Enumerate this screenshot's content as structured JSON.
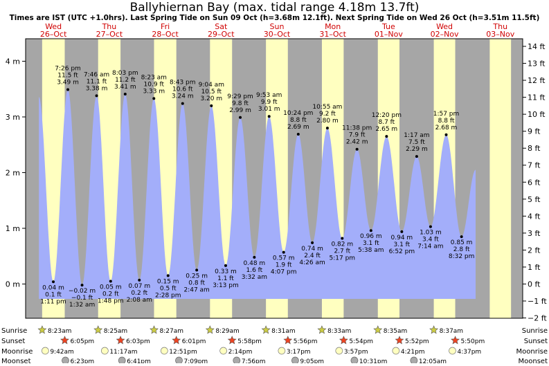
{
  "title": "Ballyhiernan Bay (max. tidal range 4.18m 13.7ft)",
  "subtitle": "Times are IST (UTC +1.0hrs). Last Spring Tide on Sun 09 Oct (h=3.68m 12.1ft). Next Spring Tide on Wed 26 Oct (h=3.51m 11.5ft)",
  "colors": {
    "night": "#a6a6a6",
    "day": "#ffffc0",
    "tide": "#a3aefa",
    "day_label": "#d00000",
    "sunrise_star": "#cccc44",
    "sunset_star": "#ee4422",
    "moonrise": "#ffffc0",
    "moonset": "#aaaaaa"
  },
  "chart_data": {
    "type": "area",
    "ylim_m": [
      -0.6,
      4.3
    ],
    "y_ticks_m": [
      "4 m",
      "3 m",
      "2 m",
      "1 m",
      "0 m"
    ],
    "y_ticks_ft": [
      "14 ft",
      "13 ft",
      "12 ft",
      "11 ft",
      "10 ft",
      "9 ft",
      "8 ft",
      "7 ft",
      "6 ft",
      "5 ft",
      "4 ft",
      "3 ft",
      "2 ft",
      "1 ft",
      "0 ft",
      "−1 ft",
      "−2 ft"
    ],
    "days": [
      {
        "dow": "Wed",
        "date": "26–Oct"
      },
      {
        "dow": "Thu",
        "date": "27–Oct"
      },
      {
        "dow": "Fri",
        "date": "28–Oct"
      },
      {
        "dow": "Sat",
        "date": "29–Oct"
      },
      {
        "dow": "Sun",
        "date": "30–Oct"
      },
      {
        "dow": "Mon",
        "date": "31–Oct"
      },
      {
        "dow": "Tue",
        "date": "01–Nov"
      },
      {
        "dow": "Wed",
        "date": "02–Nov"
      },
      {
        "dow": "Thu",
        "date": "03–Nov"
      }
    ],
    "tides": [
      {
        "kind": "high",
        "day": 0,
        "hour": 7.0,
        "m": 3.36,
        "unlabeled": true
      },
      {
        "kind": "low",
        "day": 0,
        "hour": 13.18,
        "m": 0.04,
        "h": "0.04 m",
        "ft": "0.1 ft",
        "time": "1:11 pm"
      },
      {
        "kind": "high",
        "day": 0,
        "hour": 19.43,
        "m": 3.49,
        "h": "3.49 m",
        "ft": "11.5 ft",
        "time": "7:26 pm"
      },
      {
        "kind": "low",
        "day": 1,
        "hour": 1.53,
        "m": -0.02,
        "h": "−0.02 m",
        "ft": "−0.1 ft",
        "time": "1:32 am"
      },
      {
        "kind": "high",
        "day": 1,
        "hour": 7.77,
        "m": 3.38,
        "h": "3.38 m",
        "ft": "11.1 ft",
        "time": "7:46 am"
      },
      {
        "kind": "low",
        "day": 1,
        "hour": 13.8,
        "m": 0.05,
        "h": "0.05 m",
        "ft": "0.2 ft",
        "time": "1:48 pm"
      },
      {
        "kind": "high",
        "day": 1,
        "hour": 20.05,
        "m": 3.41,
        "h": "3.41 m",
        "ft": "11.2 ft",
        "time": "8:03 pm"
      },
      {
        "kind": "low",
        "day": 2,
        "hour": 2.13,
        "m": 0.07,
        "h": "0.07 m",
        "ft": "0.2 ft",
        "time": "2:08 am"
      },
      {
        "kind": "high",
        "day": 2,
        "hour": 8.38,
        "m": 3.33,
        "h": "3.33 m",
        "ft": "10.9 ft",
        "time": "8:23 am"
      },
      {
        "kind": "low",
        "day": 2,
        "hour": 14.47,
        "m": 0.15,
        "h": "0.15 m",
        "ft": "0.5 ft",
        "time": "2:28 pm"
      },
      {
        "kind": "high",
        "day": 2,
        "hour": 20.72,
        "m": 3.24,
        "h": "3.24 m",
        "ft": "10.6 ft",
        "time": "8:43 pm"
      },
      {
        "kind": "low",
        "day": 3,
        "hour": 2.78,
        "m": 0.25,
        "h": "0.25 m",
        "ft": "0.8 ft",
        "time": "2:47 am"
      },
      {
        "kind": "high",
        "day": 3,
        "hour": 9.07,
        "m": 3.2,
        "h": "3.20 m",
        "ft": "10.5 ft",
        "time": "9:04 am"
      },
      {
        "kind": "low",
        "day": 3,
        "hour": 15.22,
        "m": 0.33,
        "h": "0.33 m",
        "ft": "1.1 ft",
        "time": "3:13 pm"
      },
      {
        "kind": "high",
        "day": 3,
        "hour": 21.48,
        "m": 2.99,
        "h": "2.99 m",
        "ft": "9.8 ft",
        "time": "9:29 pm"
      },
      {
        "kind": "low",
        "day": 4,
        "hour": 3.53,
        "m": 0.48,
        "h": "0.48 m",
        "ft": "1.6 ft",
        "time": "3:32 am"
      },
      {
        "kind": "high",
        "day": 4,
        "hour": 9.88,
        "m": 3.01,
        "h": "3.01 m",
        "ft": "9.9 ft",
        "time": "9:53 am"
      },
      {
        "kind": "low",
        "day": 4,
        "hour": 16.12,
        "m": 0.57,
        "h": "0.57 m",
        "ft": "1.9 ft",
        "time": "4:07 pm"
      },
      {
        "kind": "high",
        "day": 4,
        "hour": 22.4,
        "m": 2.69,
        "h": "2.69 m",
        "ft": "8.8 ft",
        "time": "10:24 pm"
      },
      {
        "kind": "low",
        "day": 5,
        "hour": 4.43,
        "m": 0.74,
        "h": "0.74 m",
        "ft": "2.4 ft",
        "time": "4:26 am"
      },
      {
        "kind": "high",
        "day": 5,
        "hour": 10.92,
        "m": 2.8,
        "h": "2.80 m",
        "ft": "9.2 ft",
        "time": "10:55 am"
      },
      {
        "kind": "low",
        "day": 5,
        "hour": 17.28,
        "m": 0.82,
        "h": "0.82 m",
        "ft": "2.7 ft",
        "time": "5:17 pm"
      },
      {
        "kind": "high",
        "day": 5,
        "hour": 23.63,
        "m": 2.42,
        "h": "2.42 m",
        "ft": "7.9 ft",
        "time": "11:38 pm"
      },
      {
        "kind": "low",
        "day": 6,
        "hour": 5.63,
        "m": 0.96,
        "h": "0.96 m",
        "ft": "3.1 ft",
        "time": "5:38 am"
      },
      {
        "kind": "high",
        "day": 6,
        "hour": 12.33,
        "m": 2.65,
        "h": "2.65 m",
        "ft": "8.7 ft",
        "time": "12:20 pm"
      },
      {
        "kind": "low",
        "day": 6,
        "hour": 18.87,
        "m": 0.94,
        "h": "0.94 m",
        "ft": "3.1 ft",
        "time": "6:52 pm"
      },
      {
        "kind": "high",
        "day": 7,
        "hour": 1.28,
        "m": 2.29,
        "h": "2.29 m",
        "ft": "7.5 ft",
        "time": "1:17 am"
      },
      {
        "kind": "low",
        "day": 7,
        "hour": 7.23,
        "m": 1.03,
        "h": "1.03 m",
        "ft": "3.4 ft",
        "time": "7:14 am"
      },
      {
        "kind": "high",
        "day": 7,
        "hour": 13.95,
        "m": 2.68,
        "h": "2.68 m",
        "ft": "8.8 ft",
        "time": "1:57 pm"
      },
      {
        "kind": "low",
        "day": 7,
        "hour": 20.53,
        "m": 0.85,
        "h": "0.85 m",
        "ft": "2.8 ft",
        "time": "8:32 pm"
      },
      {
        "kind": "high",
        "day": 8,
        "hour": 2.6,
        "m": 2.05,
        "unlabeled": true
      }
    ],
    "sun": [
      {
        "rise": 8.38,
        "rise_label": "8:23am",
        "set": 18.08,
        "set_label": "6:05pm"
      },
      {
        "rise": 8.42,
        "rise_label": "8:25am",
        "set": 18.05,
        "set_label": "6:03pm"
      },
      {
        "rise": 8.45,
        "rise_label": "8:27am",
        "set": 18.02,
        "set_label": "6:01pm"
      },
      {
        "rise": 8.48,
        "rise_label": "8:29am",
        "set": 17.97,
        "set_label": "5:58pm"
      },
      {
        "rise": 8.52,
        "rise_label": "8:31am",
        "set": 17.93,
        "set_label": "5:56pm"
      },
      {
        "rise": 8.55,
        "rise_label": "8:33am",
        "set": 17.9,
        "set_label": "5:54pm"
      },
      {
        "rise": 8.58,
        "rise_label": "8:35am",
        "set": 17.87,
        "set_label": "5:52pm"
      },
      {
        "rise": 8.62,
        "rise_label": "8:37am",
        "set": 17.83,
        "set_label": "5:50pm"
      },
      {
        "rise": 8.65,
        "set": 17.8
      }
    ],
    "moonrise": [
      {
        "day": 0,
        "hour": 9.7,
        "label": "9:42am"
      },
      {
        "day": 1,
        "hour": 11.28,
        "label": "11:17am"
      },
      {
        "day": 2,
        "hour": 12.85,
        "label": "12:51pm"
      },
      {
        "day": 3,
        "hour": 14.23,
        "label": "2:14pm"
      },
      {
        "day": 4,
        "hour": 15.28,
        "label": "3:17pm"
      },
      {
        "day": 5,
        "hour": 15.95,
        "label": "3:57pm"
      },
      {
        "day": 6,
        "hour": 16.35,
        "label": "4:21pm"
      },
      {
        "day": 7,
        "hour": 16.62,
        "label": "4:37pm"
      }
    ],
    "moonset": [
      {
        "day": 0,
        "hour": 18.38,
        "label": "6:23pm"
      },
      {
        "day": 1,
        "hour": 18.68,
        "label": "6:41pm"
      },
      {
        "day": 2,
        "hour": 19.15,
        "label": "7:09pm"
      },
      {
        "day": 3,
        "hour": 19.93,
        "label": "7:56pm"
      },
      {
        "day": 4,
        "hour": 21.08,
        "label": "9:05pm"
      },
      {
        "day": 5,
        "hour": 22.52,
        "label": "10:31pm"
      },
      {
        "day": 7,
        "hour": 0.08,
        "label": "12:05am"
      }
    ],
    "astro_labels": {
      "sunrise": "Sunrise",
      "sunset": "Sunset",
      "moonrise": "Moonrise",
      "moonset": "Moonset"
    }
  }
}
